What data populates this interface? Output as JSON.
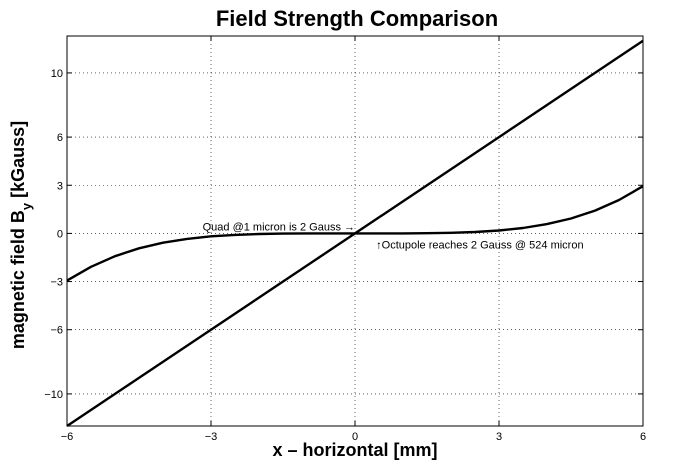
{
  "chart_data": {
    "type": "line",
    "title": "Field Strength Comparison",
    "xlabel": "x – horizontal [mm]",
    "ylabel": {
      "main": "magnetic field B",
      "sub": "y",
      "unit": " [kGauss]"
    },
    "xlim": [
      -6,
      6
    ],
    "ylim": [
      -12,
      12.3
    ],
    "xticks": [
      -6,
      -3,
      0,
      3,
      6
    ],
    "yticks": [
      -10,
      -6,
      -3,
      0,
      3,
      6,
      10
    ],
    "grid": true,
    "series": [
      {
        "x": [
          -6,
          6
        ],
        "y": [
          -12,
          12
        ]
      },
      {
        "x": [
          -6,
          -5.5,
          -5,
          -4.5,
          -4,
          -3.5,
          -3,
          -2.5,
          -2,
          -1.5,
          -1,
          -0.5,
          0,
          0.5,
          1,
          1.5,
          2,
          2.5,
          3,
          3.5,
          4,
          4.5,
          5,
          5.5,
          6
        ],
        "y": [
          -2.94,
          -2.08,
          -1.42,
          -0.93,
          -0.58,
          -0.34,
          -0.18,
          -0.09,
          -0.04,
          -0.01,
          -0.002,
          0,
          0,
          0,
          0.002,
          0.01,
          0.04,
          0.09,
          0.18,
          0.34,
          0.58,
          0.93,
          1.42,
          2.08,
          2.94
        ]
      }
    ],
    "annotations": [
      {
        "text": "Quad @1 micron is 2 Gauss →",
        "x": 0,
        "y": 0
      },
      {
        "text": "↑Octupole reaches 2 Gauss @ 524 micron",
        "x": 0.524,
        "y": 0
      }
    ]
  }
}
